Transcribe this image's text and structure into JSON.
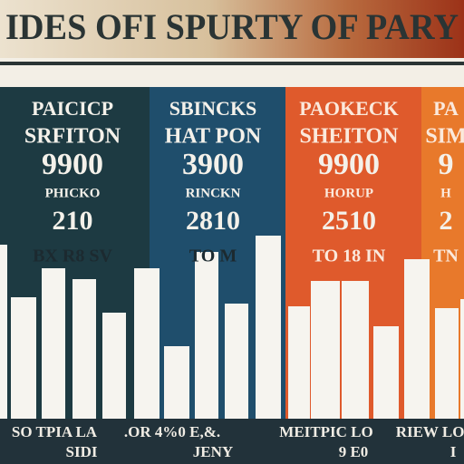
{
  "header": {
    "title": "IDES OFI SPURTY OF PARY"
  },
  "panels": [
    {
      "lines": [
        "PAICICP",
        "SRFITON",
        "9900",
        "PHICKO",
        "210",
        "BX R8 SV"
      ]
    },
    {
      "lines": [
        "SBINCKS",
        "HAT PON",
        "3900",
        "RINCKN",
        "2810",
        "TO M"
      ]
    },
    {
      "lines": [
        "PAOKECK",
        "SHEITON",
        "9900",
        "HORUP",
        "2510",
        "TO 18 IN"
      ]
    },
    {
      "lines": [
        "PA",
        "SIM",
        "9",
        "H",
        "2",
        "TN"
      ]
    }
  ],
  "bars": {
    "values": [
      192,
      134,
      166,
      154,
      117,
      166,
      80,
      184,
      127,
      202,
      124,
      152,
      152,
      102,
      176,
      122,
      132
    ]
  },
  "footer": {
    "top": [
      "SO TPIA LA",
      ".OR 4%0 E,&.",
      "MEITPIC LO",
      "RIEW LO I"
    ],
    "bottom": [
      "SIDI",
      "JENY",
      "9 E0",
      "I"
    ]
  }
}
